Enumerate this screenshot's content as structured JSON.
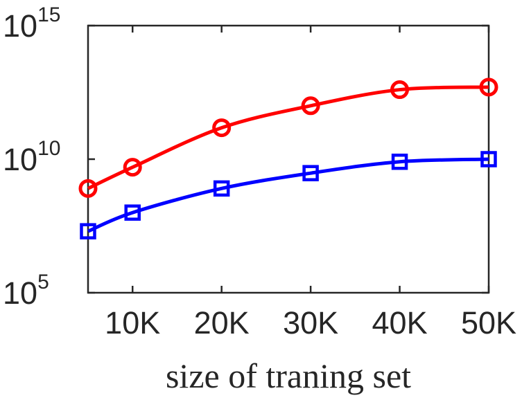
{
  "chart_data": {
    "type": "line",
    "xlabel": "size of traning set",
    "ylabel": "",
    "title": "",
    "x": [
      5000,
      10000,
      20000,
      30000,
      40000,
      50000
    ],
    "xlim": [
      5000,
      50000
    ],
    "x_ticks": [
      10000,
      20000,
      30000,
      40000,
      50000
    ],
    "x_tick_labels": [
      "10K",
      "20K",
      "30K",
      "40K",
      "50K"
    ],
    "yscale": "log",
    "ylim": [
      100000,
      1000000000000000
    ],
    "y_ticks": [
      {
        "value": 100000,
        "base": "10",
        "exp": "5"
      },
      {
        "value": 10000000000,
        "base": "10",
        "exp": "10"
      },
      {
        "value": 1000000000000000,
        "base": "10",
        "exp": "15"
      }
    ],
    "grid": false,
    "legend": false,
    "series": [
      {
        "color": "#ff0000",
        "marker": "circle",
        "values": [
          800000000,
          5000000000,
          150000000000,
          1000000000000,
          4000000000000,
          5000000000000
        ]
      },
      {
        "color": "#0000ff",
        "marker": "square",
        "values": [
          20000000,
          100000000,
          800000000,
          3000000000,
          8000000000,
          10000000000
        ]
      }
    ]
  }
}
